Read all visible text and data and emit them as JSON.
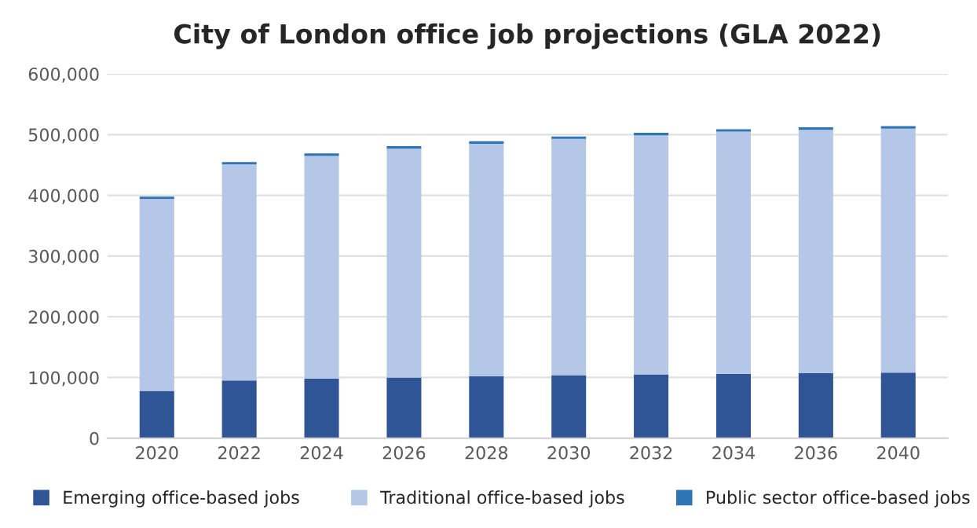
{
  "chart_data": {
    "type": "bar",
    "title": "City of London office job projections (GLA 2022)",
    "categories": [
      "2020",
      "2022",
      "2024",
      "2026",
      "2028",
      "2030",
      "2032",
      "2034",
      "2036",
      "2040"
    ],
    "stacked": true,
    "series": [
      {
        "name": "Emerging office-based jobs",
        "color": "#2f5597",
        "values": [
          78000,
          95000,
          98000,
          100000,
          102000,
          104000,
          105000,
          106000,
          107000,
          108000
        ]
      },
      {
        "name": "Traditional office-based jobs",
        "color": "#b4c7e7",
        "values": [
          316000,
          356000,
          367000,
          377000,
          383000,
          389000,
          394000,
          399000,
          401000,
          402000
        ]
      },
      {
        "name": "Public sector office-based jobs",
        "color": "#2e75b6",
        "values": [
          4000,
          4000,
          4000,
          4000,
          4000,
          4000,
          4000,
          4000,
          4000,
          4000
        ]
      }
    ],
    "ylim": [
      0,
      600000
    ],
    "yticks": [
      {
        "value": 0,
        "label": "0"
      },
      {
        "value": 100000,
        "label": "100,000"
      },
      {
        "value": 200000,
        "label": "200,000"
      },
      {
        "value": 300000,
        "label": "300,000"
      },
      {
        "value": 400000,
        "label": "400,000"
      },
      {
        "value": 500000,
        "label": "500,000"
      },
      {
        "value": 600000,
        "label": "600,000"
      }
    ],
    "grid": "y",
    "legend": "bottom"
  }
}
